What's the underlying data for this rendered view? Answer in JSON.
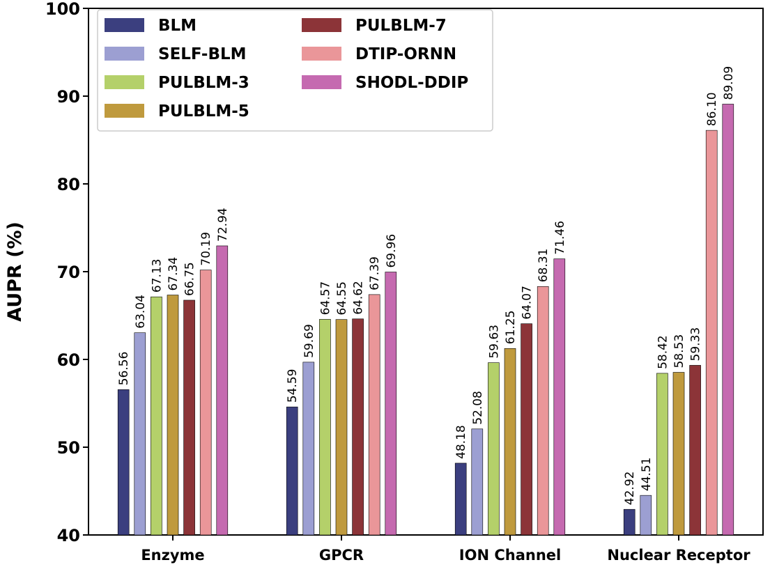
{
  "chart_data": {
    "type": "bar",
    "title": "",
    "xlabel": "",
    "ylabel": "AUPR (%)",
    "ylim": [
      40,
      100
    ],
    "yticks": [
      40,
      50,
      60,
      70,
      80,
      90,
      100
    ],
    "grid": false,
    "legend_position": "top-left",
    "categories": [
      "Enzyme",
      "GPCR",
      "ION Channel",
      "Nuclear Receptor"
    ],
    "series": [
      {
        "name": "BLM",
        "color": "#3b3f7f",
        "values": [
          56.56,
          54.59,
          48.18,
          42.92
        ]
      },
      {
        "name": "SELF-BLM",
        "color": "#9c9fd2",
        "values": [
          63.04,
          59.69,
          52.08,
          44.51
        ]
      },
      {
        "name": "PULBLM-3",
        "color": "#b4d06a",
        "values": [
          67.13,
          64.57,
          59.63,
          58.42
        ]
      },
      {
        "name": "PULBLM-5",
        "color": "#bf9a3e",
        "values": [
          67.34,
          64.55,
          61.25,
          58.53
        ]
      },
      {
        "name": "PULBLM-7",
        "color": "#8c3438",
        "values": [
          66.75,
          64.62,
          64.07,
          59.33
        ]
      },
      {
        "name": "DTIP-ORNN",
        "color": "#ea9699",
        "values": [
          70.19,
          67.39,
          68.31,
          86.1
        ]
      },
      {
        "name": "SHODL-DDIP",
        "color": "#c56ab0",
        "values": [
          72.94,
          69.96,
          71.46,
          89.09
        ]
      }
    ]
  }
}
